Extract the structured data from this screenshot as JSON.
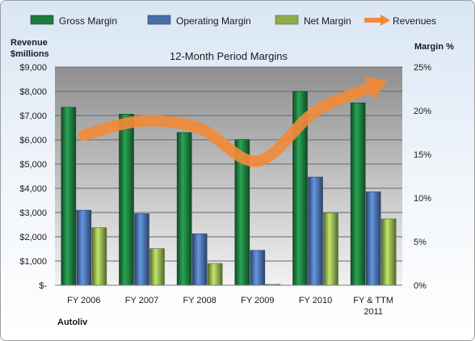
{
  "chart_data": {
    "type": "bar",
    "title": "12-Month Period Margins",
    "company": "Autoliv",
    "ylabel_left": [
      "Revenue",
      "$millions"
    ],
    "ylabel_right": "Margin %",
    "categories": [
      [
        "FY 2006"
      ],
      [
        "FY 2007"
      ],
      [
        "FY 2008"
      ],
      [
        "FY 2009"
      ],
      [
        "FY 2010"
      ],
      [
        "FY & TTM",
        "2011"
      ]
    ],
    "left_ticks": [
      "$-",
      "$1,000",
      "$2,000",
      "$3,000",
      "$4,000",
      "$5,000",
      "$6,000",
      "$7,000",
      "$8,000",
      "$9,000"
    ],
    "right_ticks": [
      "0%",
      "5%",
      "10%",
      "15%",
      "20%",
      "25%"
    ],
    "ylim_left": [
      0,
      9000
    ],
    "ylim_right": [
      0,
      25
    ],
    "grid": true,
    "legend_position": "top",
    "series": [
      {
        "name": "Gross Margin",
        "axis": "right",
        "kind": "bar",
        "color": "#1e7a3e",
        "values": [
          20.4,
          19.6,
          17.5,
          16.7,
          22.2,
          20.9
        ]
      },
      {
        "name": "Operating Margin",
        "axis": "right",
        "kind": "bar",
        "color": "#4a6fa8",
        "values": [
          8.6,
          8.2,
          5.9,
          4.0,
          12.4,
          10.7
        ]
      },
      {
        "name": "Net Margin",
        "axis": "right",
        "kind": "bar",
        "color": "#8fab4e",
        "values": [
          6.6,
          4.2,
          2.5,
          0.1,
          8.3,
          7.6
        ]
      },
      {
        "name": "Revenues",
        "axis": "left",
        "kind": "line",
        "color": "#f08a3a",
        "values": [
          6200,
          6770,
          6470,
          5120,
          7170,
          8200
        ]
      }
    ]
  }
}
